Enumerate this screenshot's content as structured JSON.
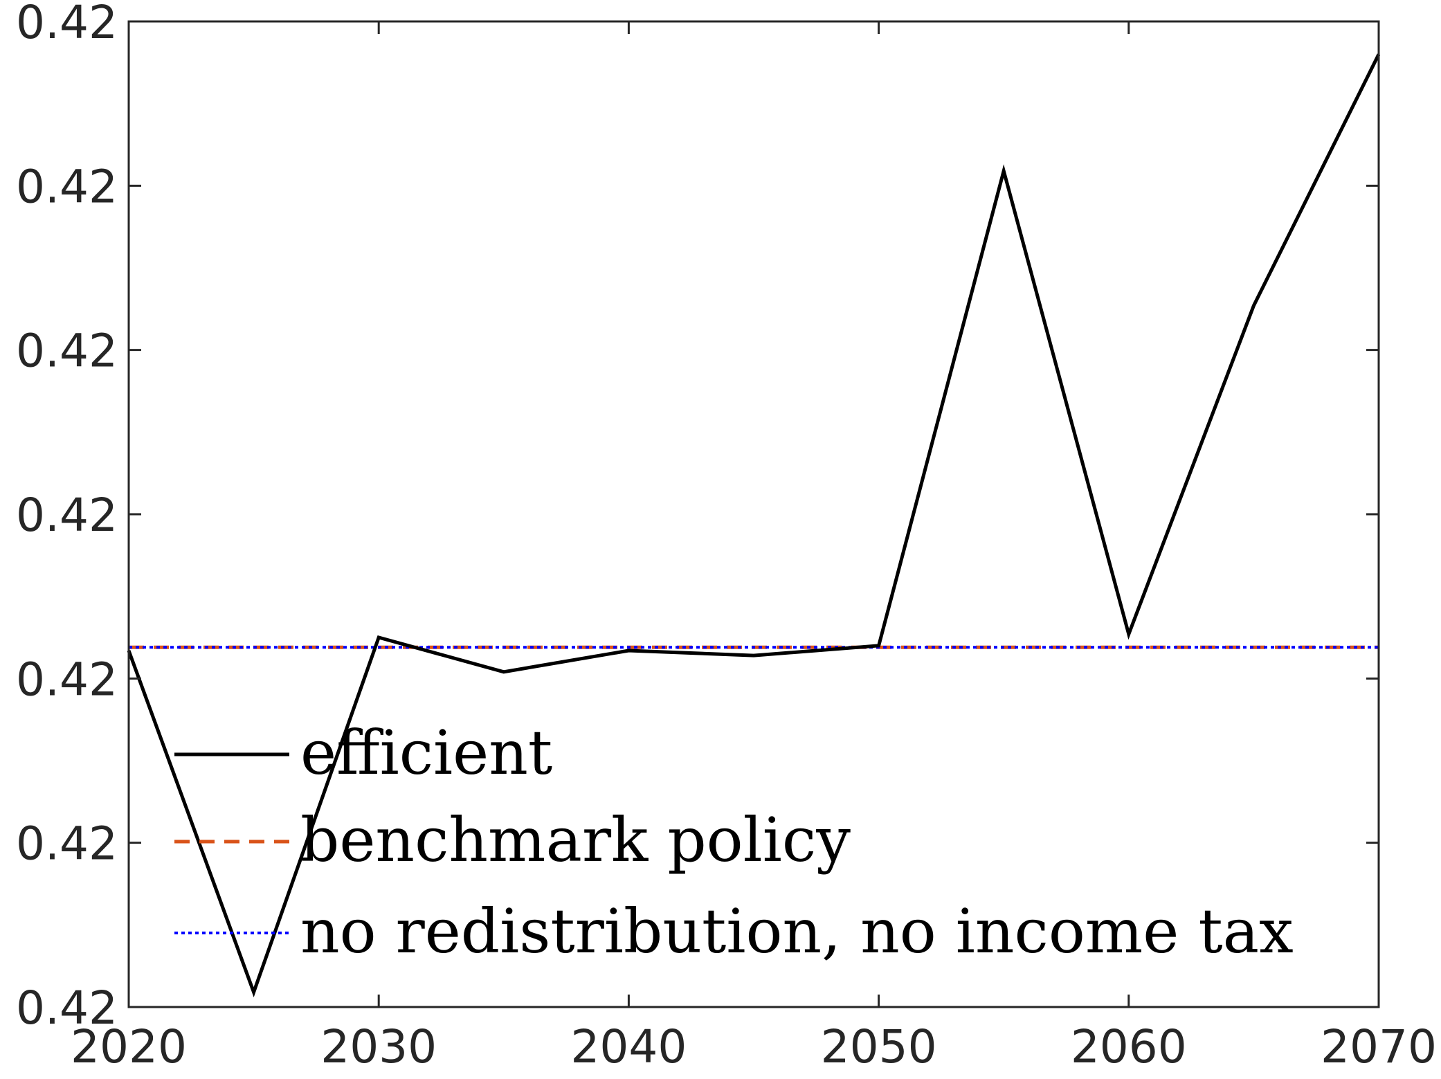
{
  "colors": {
    "efficient": "#000000",
    "benchmark": "#D95319",
    "no_redistribution": "#0000FF",
    "axes": "#262626"
  },
  "chart_data": {
    "type": "line",
    "title": "",
    "xlabel": "",
    "ylabel": "",
    "xlim": [
      2020,
      2070
    ],
    "ylim": [
      0,
      6
    ],
    "x_ticks": [
      2020,
      2030,
      2040,
      2050,
      2060,
      2070
    ],
    "x_tick_labels": [
      "2020",
      "2030",
      "2040",
      "2050",
      "2060",
      "2070"
    ],
    "y_ticks": [
      0,
      1,
      2,
      3,
      4,
      5,
      6
    ],
    "y_tick_labels": [
      "0.42",
      "0.42",
      "0.42",
      "0.42",
      "0.42",
      "0.42",
      "0.42"
    ],
    "y_value_note": "tick labels all print 0.42; y values given in tick-interval units from the bottom axis",
    "grid": false,
    "legend_position": "bottom-left",
    "x": [
      2020,
      2025,
      2030,
      2035,
      2040,
      2045,
      2050,
      2055,
      2060,
      2065,
      2070
    ],
    "series": [
      {
        "name": "efficient",
        "style": "solid",
        "values": [
          2.17,
          0.09,
          2.25,
          2.04,
          2.17,
          2.14,
          2.2,
          5.09,
          2.27,
          4.27,
          5.8
        ]
      },
      {
        "name": "benchmark policy",
        "style": "dashed",
        "values": [
          2.19,
          2.19,
          2.19,
          2.19,
          2.19,
          2.19,
          2.19,
          2.19,
          2.19,
          2.19,
          2.19
        ]
      },
      {
        "name": "no redistribution, no income tax",
        "style": "dotted",
        "values": [
          2.19,
          2.19,
          2.19,
          2.19,
          2.19,
          2.19,
          2.19,
          2.19,
          2.19,
          2.19,
          2.19
        ]
      }
    ]
  }
}
